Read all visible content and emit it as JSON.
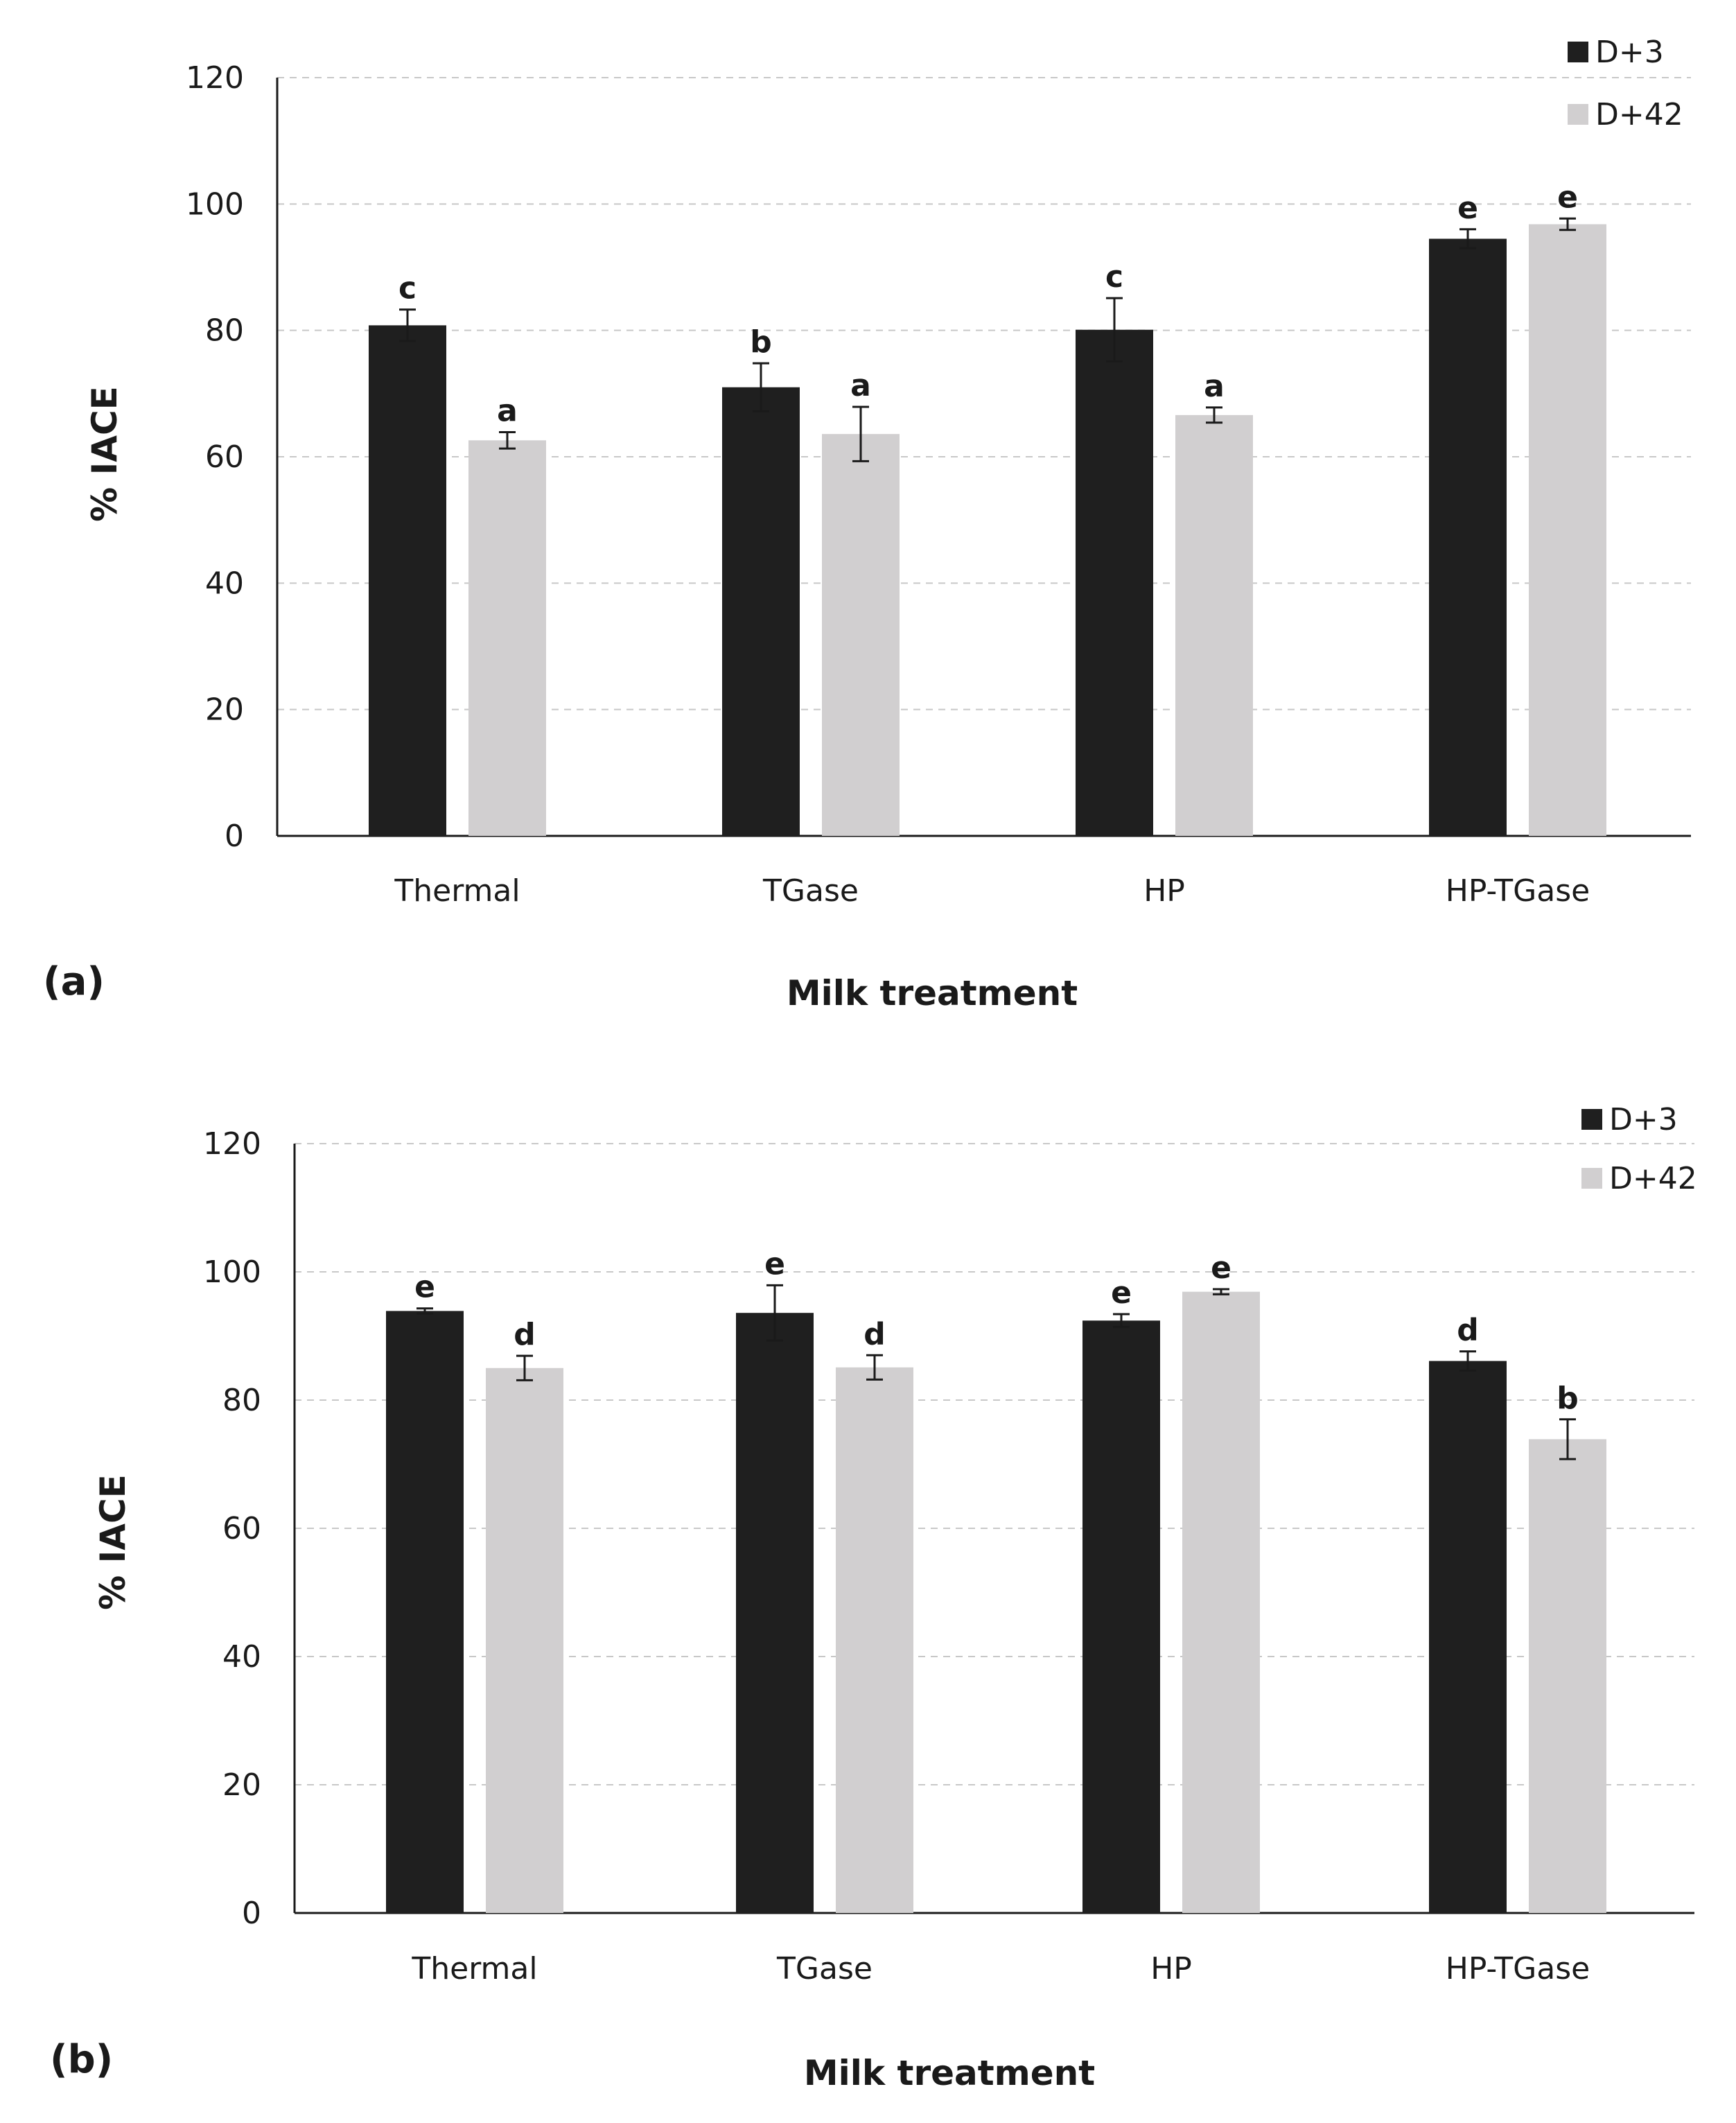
{
  "chart_data": [
    {
      "type": "bar",
      "panel_label": "(a)",
      "xlabel": "Milk treatment",
      "ylabel": "% IACE",
      "ylim": [
        0,
        120
      ],
      "yticks": [
        0,
        20,
        40,
        60,
        80,
        100,
        120
      ],
      "yticks_text": [
        "0",
        "20",
        "40",
        "60",
        "80",
        "100",
        "120"
      ],
      "grid": true,
      "legend_position": "top-right",
      "categories": [
        "Thermal",
        "TGase",
        "HP",
        "HP-TGase"
      ],
      "series": [
        {
          "name": "D+3",
          "color": "#1f1f1f",
          "values": [
            80.8,
            71.0,
            80.1,
            94.5
          ],
          "errors": [
            2.5,
            3.8,
            5.0,
            1.5
          ],
          "letters": [
            "c",
            "b",
            "c",
            "e"
          ]
        },
        {
          "name": "D+42",
          "color": "#d1cfd0",
          "values": [
            62.6,
            63.6,
            66.6,
            96.8
          ],
          "errors": [
            1.3,
            4.3,
            1.2,
            0.9
          ],
          "letters": [
            "a",
            "a",
            "a",
            "e"
          ]
        }
      ]
    },
    {
      "type": "bar",
      "panel_label": "(b)",
      "xlabel": "Milk treatment",
      "ylabel": "% IACE",
      "ylim": [
        0,
        120
      ],
      "yticks": [
        0,
        20,
        40,
        60,
        80,
        100,
        120
      ],
      "yticks_text": [
        "0",
        "20",
        "40",
        "60",
        "80",
        "100",
        "120"
      ],
      "grid": true,
      "legend_position": "top-right",
      "categories": [
        "Thermal",
        "TGase",
        "HP",
        "HP-TGase"
      ],
      "series": [
        {
          "name": "D+3",
          "color": "#1f1f1f",
          "values": [
            93.9,
            93.6,
            92.4,
            86.1
          ],
          "errors": [
            0.4,
            4.3,
            1.0,
            1.5
          ],
          "letters": [
            "e",
            "e",
            "e",
            "d"
          ]
        },
        {
          "name": "D+42",
          "color": "#d1cfd0",
          "values": [
            85.0,
            85.1,
            96.9,
            73.9
          ],
          "errors": [
            1.9,
            1.9,
            0.4,
            3.1
          ],
          "letters": [
            "d",
            "d",
            "e",
            "b"
          ]
        }
      ]
    }
  ]
}
